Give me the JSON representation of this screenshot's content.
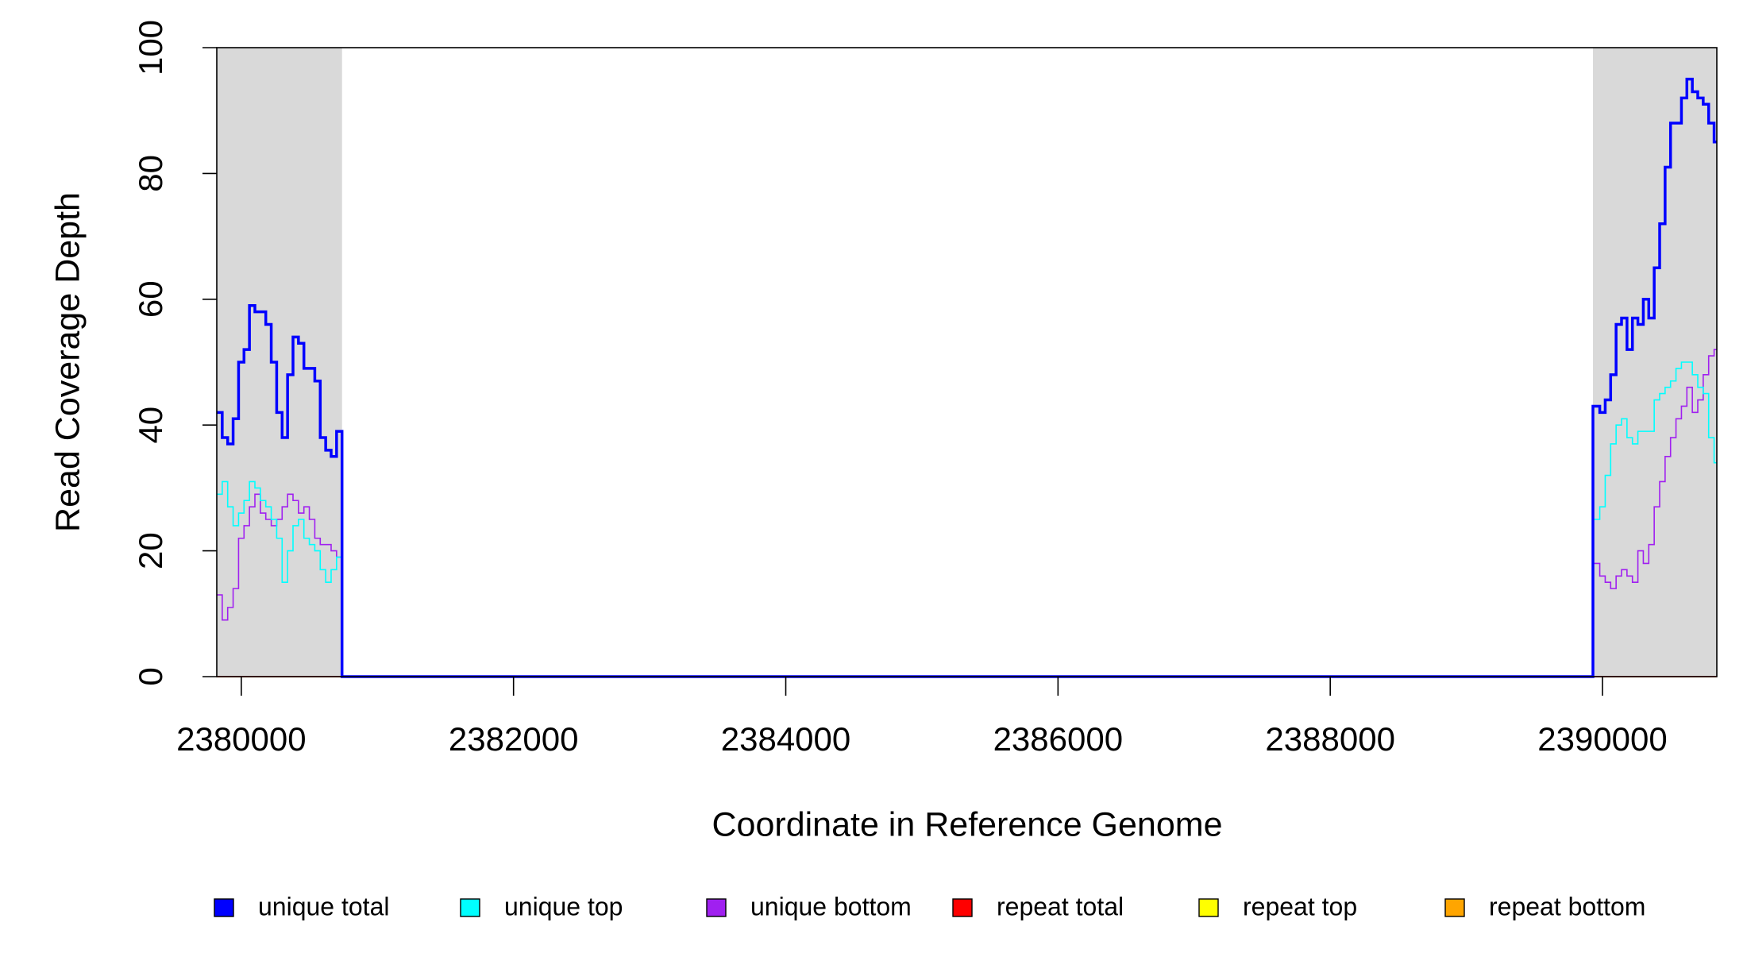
{
  "chart_data": {
    "type": "step",
    "xlabel": "Coordinate in Reference Genome",
    "ylabel": "Read Coverage Depth",
    "xlim": [
      2379820,
      2390840
    ],
    "ylim": [
      0,
      100
    ],
    "xticks": [
      2380000,
      2382000,
      2384000,
      2386000,
      2388000,
      2390000
    ],
    "yticks": [
      0,
      20,
      40,
      60,
      80,
      100
    ],
    "shaded": [
      [
        2379820,
        2380740
      ],
      [
        2389930,
        2390840
      ]
    ],
    "shade_color": "#d9d9d9",
    "legend": "bottom",
    "x": [
      2379820,
      2379860,
      2379900,
      2379940,
      2379980,
      2380020,
      2380060,
      2380100,
      2380140,
      2380180,
      2380220,
      2380260,
      2380300,
      2380340,
      2380380,
      2380420,
      2380460,
      2380500,
      2380540,
      2380580,
      2380620,
      2380660,
      2380700,
      2380740,
      2389930,
      2389980,
      2390020,
      2390060,
      2390100,
      2390140,
      2390180,
      2390220,
      2390260,
      2390300,
      2390340,
      2390380,
      2390420,
      2390460,
      2390500,
      2390540,
      2390580,
      2390620,
      2390660,
      2390700,
      2390740,
      2390780,
      2390820
    ],
    "series": [
      {
        "name": "unique total",
        "color": "#0000ff",
        "width": 3.5,
        "values": [
          42,
          38,
          37,
          41,
          50,
          52,
          59,
          58,
          58,
          56,
          50,
          42,
          38,
          48,
          54,
          53,
          49,
          49,
          47,
          38,
          36,
          35,
          39,
          0,
          43,
          42,
          44,
          48,
          56,
          57,
          52,
          57,
          56,
          60,
          57,
          65,
          72,
          81,
          88,
          88,
          92,
          95,
          93,
          92,
          91,
          88,
          85
        ]
      },
      {
        "name": "unique top",
        "color": "#00ffff",
        "width": 1.6,
        "values": [
          29,
          31,
          27,
          24,
          26,
          28,
          31,
          30,
          28,
          27,
          25,
          22,
          15,
          20,
          24,
          25,
          22,
          21,
          20,
          17,
          15,
          17,
          19,
          0,
          25,
          27,
          32,
          37,
          40,
          41,
          38,
          37,
          39,
          39,
          39,
          44,
          45,
          46,
          47,
          49,
          50,
          50,
          48,
          46,
          45,
          38,
          34
        ]
      },
      {
        "name": "unique bottom",
        "color": "#a020f0",
        "width": 1.6,
        "values": [
          13,
          9,
          11,
          14,
          22,
          24,
          27,
          29,
          26,
          25,
          24,
          25,
          27,
          29,
          28,
          26,
          27,
          25,
          22,
          21,
          21,
          20,
          19,
          0,
          18,
          16,
          15,
          14,
          16,
          17,
          16,
          15,
          20,
          18,
          21,
          27,
          31,
          35,
          38,
          41,
          43,
          46,
          42,
          44,
          48,
          51,
          52
        ]
      },
      {
        "name": "repeat total",
        "color": "#ff0000",
        "width": 1.6,
        "values": [
          0,
          0,
          0,
          0,
          0,
          0,
          0,
          0,
          0,
          0,
          0,
          0,
          0,
          0,
          0,
          0,
          0,
          0,
          0,
          0,
          0,
          0,
          0,
          0,
          0,
          0,
          0,
          0,
          0,
          0,
          0,
          0,
          0,
          0,
          0,
          0,
          0,
          0,
          0,
          0,
          0,
          0,
          0,
          0,
          0,
          0,
          0
        ]
      },
      {
        "name": "repeat top",
        "color": "#ffff00",
        "width": 1.6,
        "values": [
          0,
          0,
          0,
          0,
          0,
          0,
          0,
          0,
          0,
          0,
          0,
          0,
          0,
          0,
          0,
          0,
          0,
          0,
          0,
          0,
          0,
          0,
          0,
          0,
          0,
          0,
          0,
          0,
          0,
          0,
          0,
          0,
          0,
          0,
          0,
          0,
          0,
          0,
          0,
          0,
          0,
          0,
          0,
          0,
          0,
          0,
          0
        ]
      },
      {
        "name": "repeat bottom",
        "color": "#ffa500",
        "width": 1.6,
        "values": [
          0,
          0,
          0,
          0,
          0,
          0,
          0,
          0,
          0,
          0,
          0,
          0,
          0,
          0,
          0,
          0,
          0,
          0,
          0,
          0,
          0,
          0,
          0,
          0,
          0,
          0,
          0,
          0,
          0,
          0,
          0,
          0,
          0,
          0,
          0,
          0,
          0,
          0,
          0,
          0,
          0,
          0,
          0,
          0,
          0,
          0,
          0
        ]
      }
    ]
  }
}
